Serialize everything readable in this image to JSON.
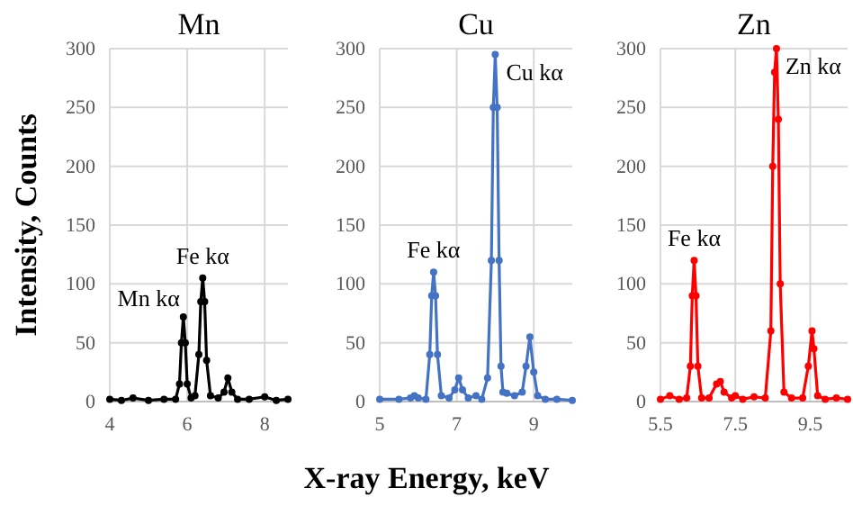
{
  "chart_data": [
    {
      "type": "line",
      "title": "Mn",
      "ylabel": "Intensity, Counts",
      "xlim": [
        4,
        8.6
      ],
      "xticks": [
        4,
        6,
        8
      ],
      "ylim": [
        0,
        300
      ],
      "yticks": [
        0,
        50,
        100,
        150,
        200,
        250,
        300
      ],
      "grid": true,
      "marker": "circle",
      "line_style": "solid",
      "series": [
        {
          "color": "#000000",
          "x": [
            4,
            4.3,
            4.6,
            5.0,
            5.4,
            5.7,
            5.8,
            5.85,
            5.9,
            5.95,
            6.0,
            6.1,
            6.2,
            6.3,
            6.35,
            6.4,
            6.45,
            6.5,
            6.6,
            6.8,
            6.95,
            7.05,
            7.15,
            7.3,
            7.6,
            8.0,
            8.3,
            8.6
          ],
          "values": [
            2,
            1,
            3,
            1,
            2,
            2,
            15,
            50,
            72,
            50,
            15,
            3,
            5,
            40,
            85,
            105,
            85,
            35,
            5,
            3,
            8,
            20,
            8,
            2,
            2,
            4,
            1,
            2
          ]
        }
      ],
      "annotations": [
        {
          "text": "Mn kα",
          "x": 5.9,
          "y": 72
        },
        {
          "text": "Fe kα",
          "x": 6.4,
          "y": 105
        }
      ]
    },
    {
      "type": "line",
      "title": "Cu",
      "xlabel": "X-ray Energy, keV",
      "xlim": [
        5,
        10
      ],
      "xticks": [
        5,
        7,
        9
      ],
      "ylim": [
        0,
        300
      ],
      "yticks": [
        0,
        50,
        100,
        150,
        200,
        250,
        300
      ],
      "grid": true,
      "marker": "circle",
      "line_style": "solid",
      "series": [
        {
          "color": "#4472c4",
          "x": [
            5,
            5.5,
            5.8,
            5.9,
            6.0,
            6.2,
            6.3,
            6.35,
            6.4,
            6.45,
            6.5,
            6.6,
            6.8,
            6.95,
            7.05,
            7.15,
            7.3,
            7.5,
            7.65,
            7.8,
            7.9,
            7.95,
            8.0,
            8.05,
            8.1,
            8.15,
            8.2,
            8.3,
            8.5,
            8.7,
            8.8,
            8.9,
            9.0,
            9.1,
            9.3,
            9.6,
            10
          ],
          "values": [
            2,
            2,
            3,
            5,
            3,
            2,
            40,
            90,
            110,
            90,
            40,
            5,
            3,
            10,
            20,
            10,
            3,
            5,
            2,
            20,
            120,
            250,
            295,
            250,
            120,
            30,
            8,
            7,
            5,
            8,
            30,
            55,
            25,
            5,
            2,
            2,
            1
          ]
        }
      ],
      "annotations": [
        {
          "text": "Fe kα",
          "x": 6.4,
          "y": 110
        },
        {
          "text": "Cu kα",
          "x": 8.05,
          "y": 295
        }
      ]
    },
    {
      "type": "line",
      "title": "Zn",
      "xlim": [
        5.5,
        10.5
      ],
      "xticks": [
        5.5,
        7.5,
        9.5
      ],
      "ylim": [
        0,
        300
      ],
      "yticks": [
        0,
        50,
        100,
        150,
        200,
        250,
        300
      ],
      "grid": true,
      "marker": "circle",
      "line_style": "solid",
      "series": [
        {
          "color": "#ff0000",
          "x": [
            5.5,
            5.75,
            6.0,
            6.2,
            6.3,
            6.35,
            6.4,
            6.45,
            6.5,
            6.6,
            6.8,
            7.0,
            7.1,
            7.2,
            7.4,
            7.5,
            7.7,
            8.0,
            8.3,
            8.45,
            8.5,
            8.55,
            8.6,
            8.65,
            8.7,
            8.8,
            9.0,
            9.3,
            9.45,
            9.55,
            9.6,
            9.7,
            9.9,
            10.2,
            10.5
          ],
          "values": [
            2,
            5,
            2,
            3,
            30,
            90,
            120,
            90,
            30,
            3,
            3,
            15,
            17,
            8,
            3,
            5,
            2,
            4,
            3,
            60,
            200,
            280,
            300,
            240,
            100,
            8,
            3,
            3,
            30,
            60,
            45,
            5,
            2,
            3,
            2
          ]
        }
      ],
      "annotations": [
        {
          "text": "Fe kα",
          "x": 6.4,
          "y": 120
        },
        {
          "text": "Zn kα",
          "x": 8.6,
          "y": 300
        }
      ]
    }
  ]
}
